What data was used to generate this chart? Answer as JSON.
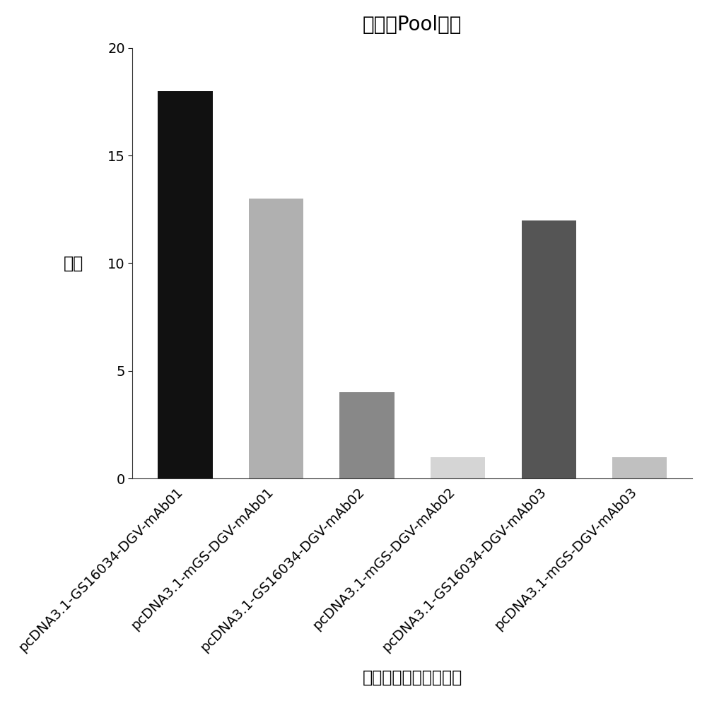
{
  "categories": [
    "pcDNA3.1-GS16034-DGV-mAb01",
    "pcDNA3.1-mGS-DGV-mAb01",
    "pcDNA3.1-GS16034-DGV-mAb02",
    "pcDNA3.1-mGS-DGV-mAb02",
    "pcDNA3.1-GS16034-DGV-mAb03",
    "pcDNA3.1-mGS-DGV-mAb03"
  ],
  "values": [
    18,
    13,
    4,
    1,
    12,
    1
  ],
  "bar_colors": [
    "#111111",
    "#b0b0b0",
    "#888888",
    "#d5d5d5",
    "#555555",
    "#c0c0c0"
  ],
  "title": "高表込Pool筛选",
  "ylabel": "数量",
  "xlabel": "含抗体序列的表达载体",
  "ylim": [
    0,
    20
  ],
  "yticks": [
    0,
    5,
    10,
    15,
    20
  ],
  "background_color": "#ffffff",
  "title_fontsize": 20,
  "label_fontsize": 17,
  "tick_fontsize": 14,
  "bar_width": 0.6,
  "spine_color": "#333333"
}
